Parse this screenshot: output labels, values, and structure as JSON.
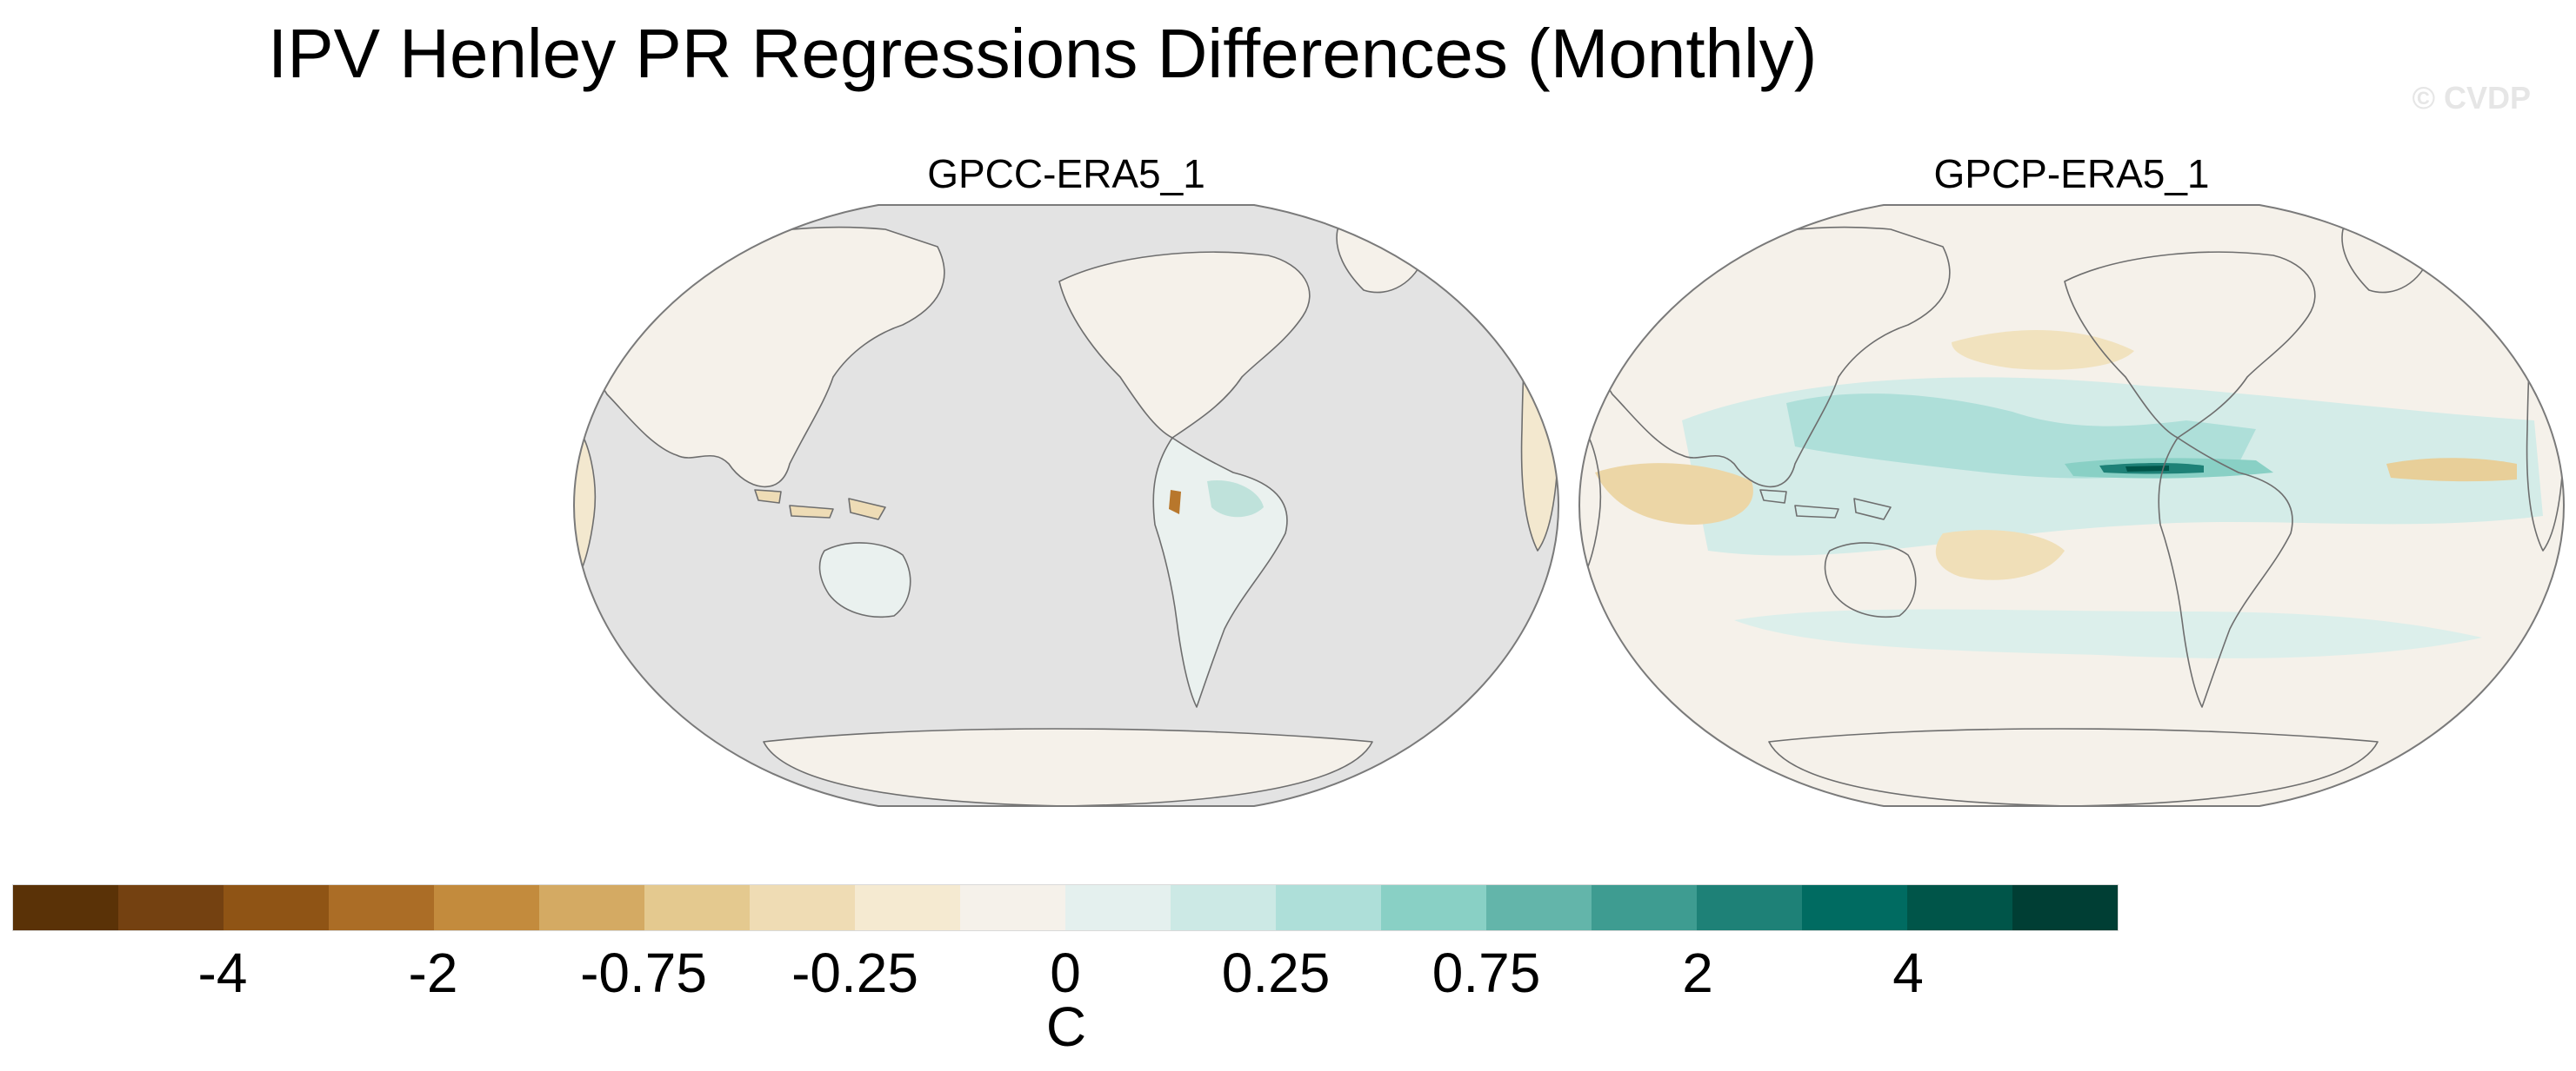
{
  "title": "IPV Henley PR Regressions Differences (Monthly)",
  "watermark": "© CVDP",
  "panels": [
    {
      "title": "GPCC-ERA5_1",
      "ocean_color": "#e3e3e3",
      "note": "land-only dataset; ocean masked grey"
    },
    {
      "title": "GPCP-ERA5_1",
      "ocean_color": "#f5f1ea",
      "note": "global coverage"
    }
  ],
  "colorbar": {
    "units": "C",
    "bins": [
      "#5a3207",
      "#744111",
      "#8f5415",
      "#ab6d26",
      "#c38b3d",
      "#d4aa63",
      "#e4c98f",
      "#efdcb4",
      "#f5ead1",
      "#f5f1ea",
      "#e4f0ee",
      "#cce9e5",
      "#aedfd9",
      "#89d0c5",
      "#63b5aa",
      "#3e9c91",
      "#1e8177",
      "#006b61",
      "#005549",
      "#003e34"
    ],
    "tick_labels": [
      "-4",
      "-2",
      "-0.75",
      "-0.25",
      "0",
      "0.25",
      "0.75",
      "2",
      "4"
    ]
  }
}
